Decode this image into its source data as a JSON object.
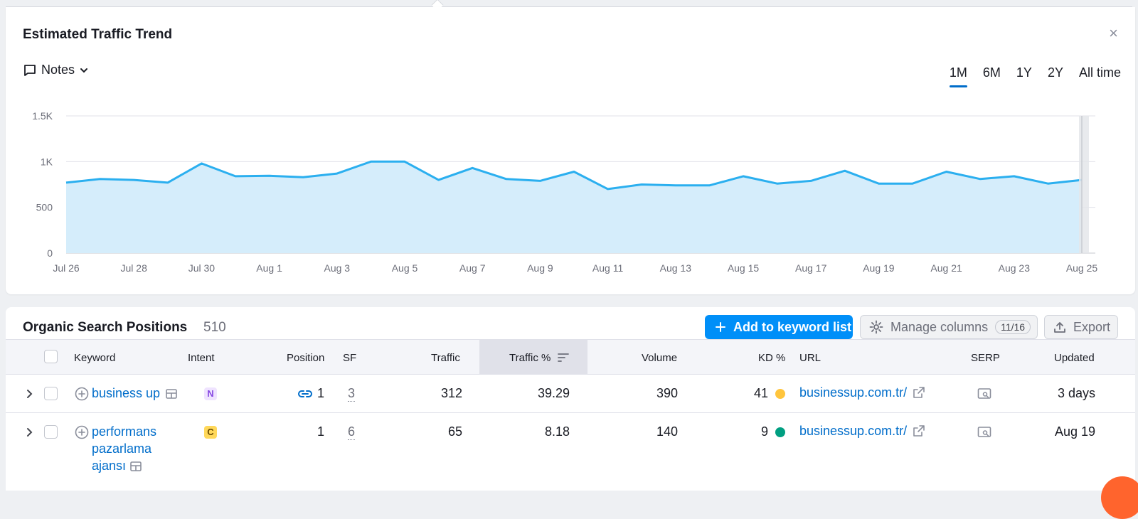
{
  "trend": {
    "title": "Estimated Traffic Trend",
    "close_label": "×",
    "notes_label": "Notes",
    "ranges": [
      "1M",
      "6M",
      "1Y",
      "2Y",
      "All time"
    ],
    "active_range": "1M"
  },
  "chart_data": {
    "type": "area",
    "title": "",
    "xlabel": "",
    "ylabel": "",
    "ylim": [
      0,
      1500
    ],
    "y_ticks": [
      "0",
      "500",
      "1K",
      "1.5K"
    ],
    "x_tick_labels": [
      "Jul 26",
      "Jul 28",
      "Jul 30",
      "Aug 1",
      "Aug 3",
      "Aug 5",
      "Aug 7",
      "Aug 9",
      "Aug 11",
      "Aug 13",
      "Aug 15",
      "Aug 17",
      "Aug 19",
      "Aug 21",
      "Aug 23",
      "Aug 25"
    ],
    "x": [
      "Jul 26",
      "Jul 27",
      "Jul 28",
      "Jul 29",
      "Jul 30",
      "Jul 31",
      "Aug 1",
      "Aug 2",
      "Aug 3",
      "Aug 4",
      "Aug 5",
      "Aug 6",
      "Aug 7",
      "Aug 8",
      "Aug 9",
      "Aug 10",
      "Aug 11",
      "Aug 12",
      "Aug 13",
      "Aug 14",
      "Aug 15",
      "Aug 16",
      "Aug 17",
      "Aug 18",
      "Aug 19",
      "Aug 20",
      "Aug 21",
      "Aug 22",
      "Aug 23",
      "Aug 24",
      "Aug 25"
    ],
    "series": [
      {
        "values": [
          770,
          810,
          800,
          770,
          980,
          840,
          845,
          830,
          870,
          1000,
          1000,
          800,
          930,
          810,
          790,
          890,
          700,
          750,
          740,
          740,
          840,
          760,
          790,
          900,
          760,
          760,
          890,
          810,
          840,
          760,
          800
        ],
        "color": "#2bafef"
      }
    ],
    "grid": true,
    "legend": "none"
  },
  "positions": {
    "title": "Organic Search Positions",
    "count": "510",
    "add_button": "Add to keyword list",
    "manage_button": "Manage columns",
    "manage_count": "11/16",
    "export_button": "Export",
    "columns": {
      "keyword": "Keyword",
      "intent": "Intent",
      "position": "Position",
      "sf": "SF",
      "traffic": "Traffic",
      "traffic_pct": "Traffic %",
      "volume": "Volume",
      "kd": "KD %",
      "url": "URL",
      "serp": "SERP",
      "updated": "Updated"
    },
    "rows": [
      {
        "keyword": "business up",
        "intent": "N",
        "position": "1",
        "sf": "3",
        "traffic": "312",
        "traffic_pct": "39.29",
        "volume": "390",
        "kd": "41",
        "kd_color": "#ffc53d",
        "url": "businessup.com.tr/",
        "updated": "3 days"
      },
      {
        "keyword_lines": [
          "performans",
          "pazarlama",
          "ajansı"
        ],
        "intent": "C",
        "position": "1",
        "sf": "6",
        "traffic": "65",
        "traffic_pct": "8.18",
        "volume": "140",
        "kd": "9",
        "kd_color": "#009f81",
        "url": "businessup.com.tr/",
        "updated": "Aug 19"
      }
    ]
  }
}
